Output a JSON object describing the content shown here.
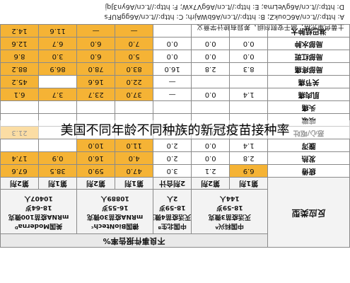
{
  "overlay_title": "美国不同年龄不同种族的新冠疫苗接种率",
  "table": {
    "type_header": "反应类型",
    "group_header": "不良事件报告率%",
    "vaccines": [
      {
        "lines": [
          "中国科兴ᴬ",
          "灭活疫苗3微克",
          "18-59岁",
          "144人"
        ],
        "sub": [
          "第1剂",
          "第2剂"
        ]
      },
      {
        "lines": [
          "中国北生ᴮ",
          "灭活疫苗4微克",
          "18-59岁",
          "2人"
        ],
        "sub": [
          "2剂合计"
        ]
      },
      {
        "lines": [
          "德国BioNtechᶜ",
          "mRNA疫苗30微克",
          "16-55岁",
          "10889人"
        ],
        "sub": [
          "第1剂",
          "第2剂"
        ]
      },
      {
        "lines": [
          "美国Modernaᴰ",
          "mRNA疫苗100微克",
          "18-64岁",
          "10407人"
        ],
        "sub": [
          "第1剂",
          "第2剂"
        ]
      }
    ],
    "rows": [
      {
        "label": "疲倦",
        "values": [
          "6.9",
          "2.1",
          "3.0",
          "47.0",
          "59.0",
          "38.5",
          "67.6"
        ]
      },
      {
        "label": "发热",
        "values": [
          "2.8",
          "0.0",
          "2.0",
          "4.0",
          "16.0",
          "0.9",
          "17.4"
        ]
      },
      {
        "label": "腹泻",
        "values": [
          "1.4",
          "0.0",
          "2.0",
          "11.0",
          "10.0",
          "",
          ""
        ]
      },
      {
        "label": "恶心/呕吐",
        "values": [
          "",
          "0.7",
          "1.0",
          "",
          "",
          "",
          "21.3"
        ]
      },
      {
        "label": "咳嗽",
        "values": [
          "",
          "",
          "",
          "",
          "",
          "",
          ""
        ]
      },
      {
        "label": "头痛",
        "values": [
          "",
          "",
          "",
          "",
          "",
          "",
          ""
        ]
      },
      {
        "label": "肌肉痛",
        "values": [
          "1.4",
          "0.0",
          "—",
          "37.0",
          "23.7",
          "3.7",
          "6.1"
        ]
      },
      {
        "label": "关节痛",
        "values": [
          "",
          "",
          "—",
          "22.0",
          "16.6",
          "",
          "45.2"
        ]
      },
      {
        "label": "局部疼痛",
        "values": [
          "8.3",
          "2.8",
          "16.0",
          "83.0",
          "78.0",
          "86.9",
          "88.2"
        ]
      },
      {
        "label": "局部红斑",
        "values": [
          "0.0",
          "0.0",
          "0.0",
          "5.0",
          "6.0",
          "3.0",
          "8.6"
        ]
      },
      {
        "label": "局部水肿",
        "values": [
          "0.0",
          "0.0",
          "0.0",
          "7.0",
          "6.0",
          "6.7",
          "12.6"
        ]
      },
      {
        "label": "淋巴结肿大",
        "values": [
          "",
          "",
          "",
          "—",
          "—",
          "11.6",
          "14.2"
        ]
      }
    ],
    "highlight_cols": [
      4,
      5,
      6,
      7
    ],
    "highlight_first_col": true
  },
  "notes": [
    "土黄色单元格：高于安慰剂组，差异有统计学意义",
    "A: http://t.cn/A6CoukZ;  B: http://t.cn/A6bWAjrh;  C: http://t.cn/A6ggRUFs",
    "D: http://t.cn/A6gVeLma;  E: http://t.cn/A6gV7xW;  F: http://t.cn/A6yn3Jqj"
  ],
  "colors": {
    "highlight": "#f5b335",
    "header": "#e9e9e9",
    "grid": "#8a8a8a"
  }
}
